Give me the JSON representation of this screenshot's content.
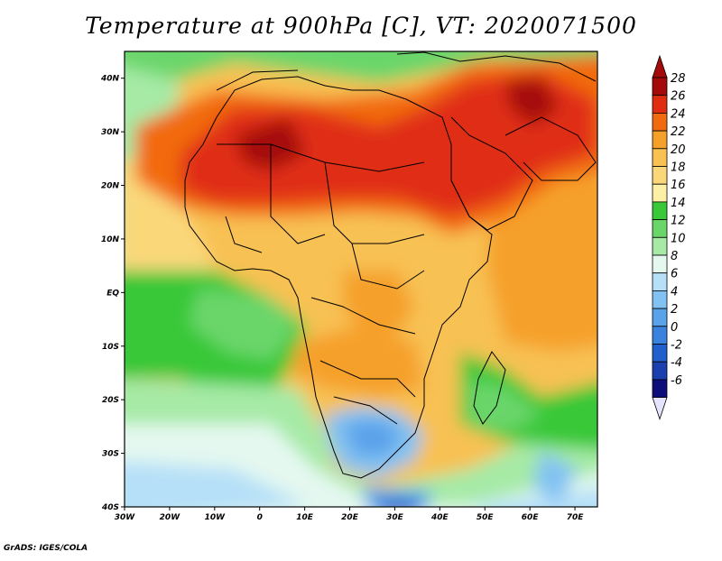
{
  "title": "Temperature at 900hPa [C], VT: 2020071500",
  "credit": "GrADS: IGES/COLA",
  "map": {
    "lon_ticks": [
      "30W",
      "20W",
      "10W",
      "0",
      "10E",
      "20E",
      "30E",
      "40E",
      "50E",
      "60E",
      "70E"
    ],
    "lat_ticks": [
      "40N",
      "30N",
      "20N",
      "10N",
      "EQ",
      "10S",
      "20S",
      "30S",
      "40S"
    ],
    "lon_range": [
      -30,
      75
    ],
    "lat_range": [
      -40,
      45
    ],
    "variable": "Temperature",
    "level": "900hPa",
    "units": "C",
    "valid_time": "2020071500"
  },
  "colorbar": {
    "labels": [
      "28",
      "26",
      "24",
      "22",
      "20",
      "18",
      "16",
      "14",
      "12",
      "10",
      "8",
      "6",
      "4",
      "2",
      "0",
      "-2",
      "-4",
      "-6"
    ],
    "colors": [
      "#a50a0a",
      "#e02d12",
      "#f26a10",
      "#f5a02a",
      "#f8c152",
      "#fad87a",
      "#fbf0a6",
      "#38c838",
      "#6ad66a",
      "#a6eaa6",
      "#e4f8f0",
      "#b6e0f8",
      "#82c2f2",
      "#5aa2ea",
      "#3a82de",
      "#205fcc",
      "#1a40b0",
      "#0c0c7a"
    ],
    "levels": [
      30,
      28,
      26,
      24,
      22,
      20,
      18,
      16,
      14,
      12,
      10,
      8,
      6,
      4,
      2,
      0,
      -2,
      -4,
      -6
    ]
  }
}
